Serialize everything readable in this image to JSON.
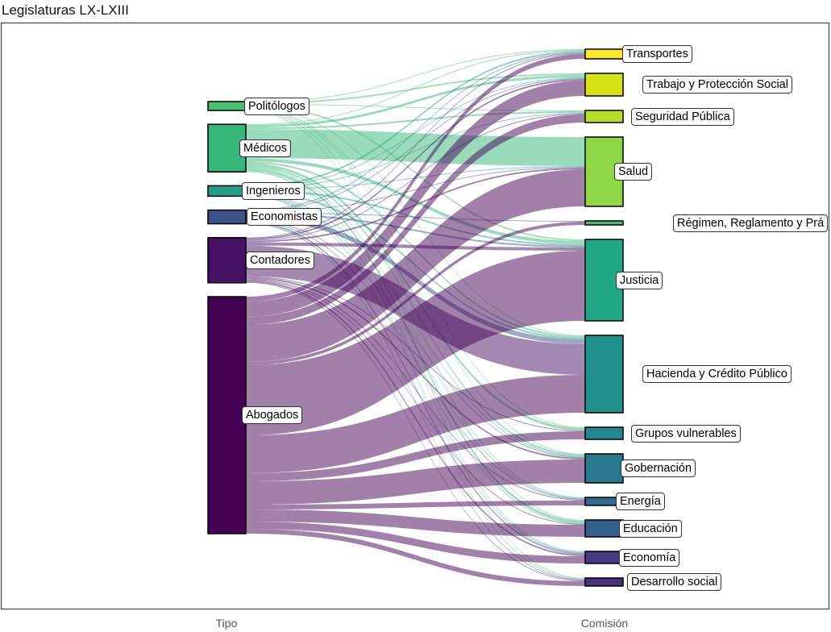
{
  "chart_data": {
    "type": "alluvial",
    "title": "Legislaturas LX-LXIII",
    "axes": [
      "Tipo",
      "Comisión"
    ],
    "sources": [
      {
        "name": "Politólogos",
        "color": "#4ac16d"
      },
      {
        "name": "Médicos",
        "color": "#35b779"
      },
      {
        "name": "Ingenieros",
        "color": "#1f9e89"
      },
      {
        "name": "Economistas",
        "color": "#3b528b"
      },
      {
        "name": "Contadores",
        "color": "#471164"
      },
      {
        "name": "Abogados",
        "color": "#440154"
      }
    ],
    "targets": [
      {
        "name": "Transportes",
        "color": "#fde725"
      },
      {
        "name": "Trabajo y Protección Social",
        "color": "#d8e219"
      },
      {
        "name": "Seguridad Pública",
        "color": "#b5de2b"
      },
      {
        "name": "Salud",
        "color": "#8fd744"
      },
      {
        "name": "Régimen, Reglamento y Prá",
        "color": "#4ac16d"
      },
      {
        "name": "Justicia",
        "color": "#22a884"
      },
      {
        "name": "Hacienda y Crédito Público",
        "color": "#21918c"
      },
      {
        "name": "Grupos vulnerables",
        "color": "#23898e"
      },
      {
        "name": "Gobernación",
        "color": "#2a788e"
      },
      {
        "name": "Energía",
        "color": "#31688e"
      },
      {
        "name": "Educación",
        "color": "#355f8d"
      },
      {
        "name": "Economía",
        "color": "#443a83"
      },
      {
        "name": "Desarrollo social",
        "color": "#46337e"
      }
    ],
    "flows": [
      [
        1,
        2,
        1,
        0,
        0,
        2,
        1,
        1,
        1,
        0,
        1,
        0,
        1
      ],
      [
        1,
        3,
        2,
        36,
        0,
        4,
        2,
        3,
        2,
        1,
        3,
        1,
        1
      ],
      [
        2,
        1,
        1,
        1,
        0,
        2,
        2,
        0,
        1,
        1,
        1,
        1,
        0
      ],
      [
        1,
        1,
        0,
        1,
        1,
        2,
        6,
        0,
        1,
        1,
        0,
        2,
        1
      ],
      [
        1,
        2,
        1,
        2,
        0,
        4,
        38,
        1,
        2,
        1,
        1,
        2,
        1
      ],
      [
        6,
        19,
        10,
        46,
        4,
        87,
        47,
        10,
        29,
        6,
        15,
        9,
        6
      ]
    ]
  }
}
